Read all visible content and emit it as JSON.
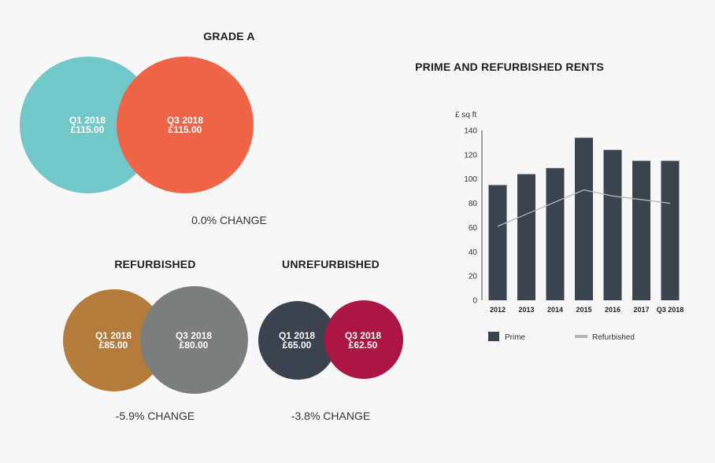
{
  "grade_a": {
    "title": "GRADE A",
    "q1": {
      "period": "Q1 2018",
      "value": "£115.00"
    },
    "q3": {
      "period": "Q3 2018",
      "value": "£115.00"
    },
    "change": "0.0% CHANGE"
  },
  "refurbished": {
    "title": "REFURBISHED",
    "q1": {
      "period": "Q1 2018",
      "value": "£85.00"
    },
    "q3": {
      "period": "Q3 2018",
      "value": "£80.00"
    },
    "change": "-5.9% CHANGE"
  },
  "unrefurbished": {
    "title": "UNREFURBISHED",
    "q1": {
      "period": "Q1 2018",
      "value": "£65.00"
    },
    "q3": {
      "period": "Q3 2018",
      "value": "£62.50"
    },
    "change": "-3.8% CHANGE"
  },
  "colors": {
    "grade_a_q1": "#72c7c8",
    "grade_a_q3": "#ef6347",
    "refurb_q1": "#b47b3b",
    "refurb_q3": "#7b7e7c",
    "unrefurb_q1": "#3b434e",
    "unrefurb_q3": "#ac1645",
    "prime_bar": "#3b434e",
    "refurb_line": "#b5b5b5"
  },
  "chart_data": {
    "type": "bar",
    "title": "PRIME AND REFURBISHED RENTS",
    "ylabel": "£ sq ft",
    "categories": [
      "2012",
      "2013",
      "2014",
      "2015",
      "2016",
      "2017",
      "Q3 2018"
    ],
    "ylim": [
      0,
      140
    ],
    "yticks": [
      0,
      20,
      40,
      60,
      80,
      100,
      120,
      140
    ],
    "series": [
      {
        "name": "Prime",
        "kind": "bar",
        "values": [
          95,
          104,
          109,
          134,
          124,
          115,
          115
        ]
      },
      {
        "name": "Refurbished",
        "kind": "line",
        "values": [
          61,
          71,
          81,
          91,
          86,
          83,
          80
        ]
      }
    ],
    "legend": "bottom",
    "grid": false
  }
}
